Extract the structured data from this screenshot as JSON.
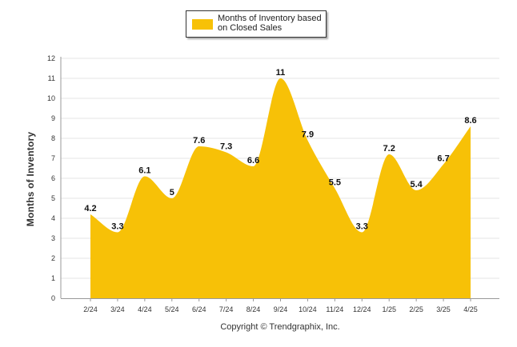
{
  "legend": {
    "label": "Months of Inventory based on Closed Sales"
  },
  "footer": {
    "copyright": "Copyright © Trendgraphix, Inc."
  },
  "colors": {
    "area_fill": "#F7C107",
    "grid": "#E6E6E6",
    "axis": "#999999"
  },
  "chart_data": {
    "type": "area",
    "title": "",
    "xlabel": "",
    "ylabel": "Months of Inventory",
    "legend_position": "top-center",
    "grid": true,
    "ylim": [
      0,
      12
    ],
    "yticks": [
      0,
      1,
      2,
      3,
      4,
      5,
      6,
      7,
      8,
      9,
      10,
      11,
      12
    ],
    "categories": [
      "2/24",
      "3/24",
      "4/24",
      "5/24",
      "6/24",
      "7/24",
      "8/24",
      "9/24",
      "10/24",
      "11/24",
      "12/24",
      "1/25",
      "2/25",
      "3/25",
      "4/25"
    ],
    "series": [
      {
        "name": "Months of Inventory based on Closed Sales",
        "values": [
          4.2,
          3.3,
          6.1,
          5,
          7.6,
          7.3,
          6.6,
          11,
          7.9,
          5.5,
          3.3,
          7.2,
          5.4,
          6.7,
          8.6
        ],
        "data_labels": [
          "4.2",
          "3.3",
          "6.1",
          "5",
          "7.6",
          "7.3",
          "6.6",
          "11",
          "7.9",
          "5.5",
          "3.3",
          "7.2",
          "5.4",
          "6.7",
          "8.6"
        ]
      }
    ]
  }
}
